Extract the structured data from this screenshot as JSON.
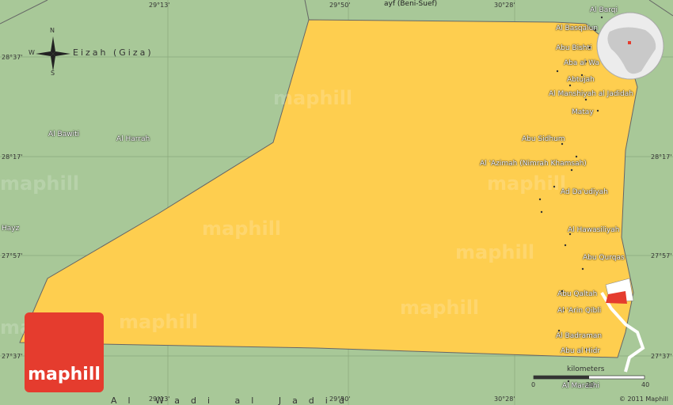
{
  "map": {
    "colors": {
      "land": "#a8c898",
      "region": "#fece4f",
      "accent": "#e53c2e",
      "grid": "#888888"
    },
    "regions": [
      "Eizah (Giza)",
      "Al Wadi al Jadid"
    ],
    "external_labels": [
      {
        "id": "beni-suef",
        "text": "ayf (Beni-Suef)"
      },
      {
        "id": "bawiti",
        "text": "Al Bawiti"
      },
      {
        "id": "harrah",
        "text": "Al Harrah"
      },
      {
        "id": "hayz",
        "text": "Hayz"
      }
    ],
    "towns": [
      {
        "id": "barqi",
        "text": "Al Barqi"
      },
      {
        "id": "basqalun",
        "text": "Al Basqalun"
      },
      {
        "id": "abu-bishti",
        "text": "Abu Bishti"
      },
      {
        "id": "aba-al-wa",
        "text": "Aba al Wa"
      },
      {
        "id": "abtujah",
        "text": "Abtujah"
      },
      {
        "id": "manshiyah",
        "text": "Al Manshiyah al Jadidah"
      },
      {
        "id": "matay",
        "text": "Matay"
      },
      {
        "id": "abu-sidhum",
        "text": "Abu Sidhum"
      },
      {
        "id": "azimah",
        "text": "Al 'Azimah (Nimrah Khamsah)"
      },
      {
        "id": "ad-daudiyah",
        "text": "Ad Da'udiyah"
      },
      {
        "id": "hawasiliyah",
        "text": "Al Hawasiliyah"
      },
      {
        "id": "abu-qurqas",
        "text": "Abu Qurqas"
      },
      {
        "id": "abu-qaltah",
        "text": "Abu Qaltah"
      },
      {
        "id": "arin-qibli",
        "text": "Al 'Arin Qibli"
      },
      {
        "id": "badraman",
        "text": "Al Badraman"
      },
      {
        "id": "abu-al-hidr",
        "text": "Abu al Hidr"
      },
      {
        "id": "marashi",
        "text": "Al Marashi"
      }
    ],
    "coords": {
      "lat": [
        "28°37'",
        "28°17'",
        "27°57'",
        "27°37'"
      ],
      "lon_top": [
        "29°13'",
        "29°50'",
        "30°28'"
      ],
      "lon_bottom": [
        "29°13'",
        "29°50'",
        "30°28'"
      ]
    },
    "compass": {
      "n": "N",
      "s": "S",
      "w": "W"
    },
    "watermark": "maphill",
    "logo_text": "maphill",
    "scale": {
      "label": "kilometers",
      "ticks": [
        "0",
        "20",
        "40"
      ]
    },
    "copyright": "© 2011 Maphill"
  }
}
